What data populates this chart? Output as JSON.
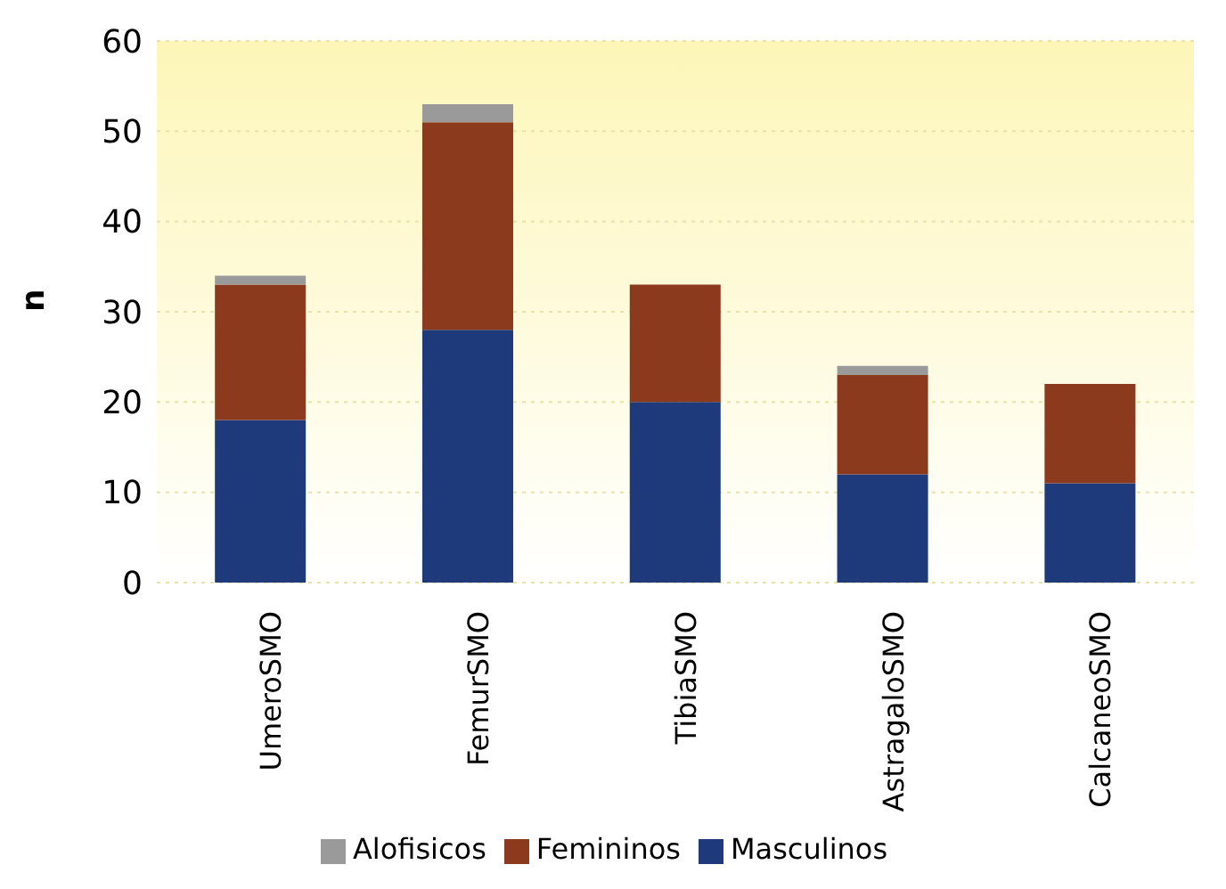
{
  "chart_data": {
    "type": "bar",
    "stacked": true,
    "ylabel": "n",
    "categories": [
      "UmeroSMO",
      "FemurSMO",
      "TibiaSMO",
      "AstragaloSMO",
      "CalcaneoSMO"
    ],
    "series": [
      {
        "name": "Masculinos",
        "color": "#1f3a7a",
        "values": [
          18,
          28,
          20,
          12,
          11
        ]
      },
      {
        "name": "Femininos",
        "color": "#8b3a1e",
        "values": [
          15,
          23,
          13,
          11,
          11
        ]
      },
      {
        "name": "Alofisicos",
        "color": "#9a9a9a",
        "values": [
          1,
          2,
          0,
          1,
          0
        ]
      }
    ],
    "ylim": [
      0,
      60
    ],
    "yticks": [
      0,
      10,
      20,
      30,
      40,
      50,
      60
    ],
    "grid": "y",
    "legend": "bottom"
  }
}
